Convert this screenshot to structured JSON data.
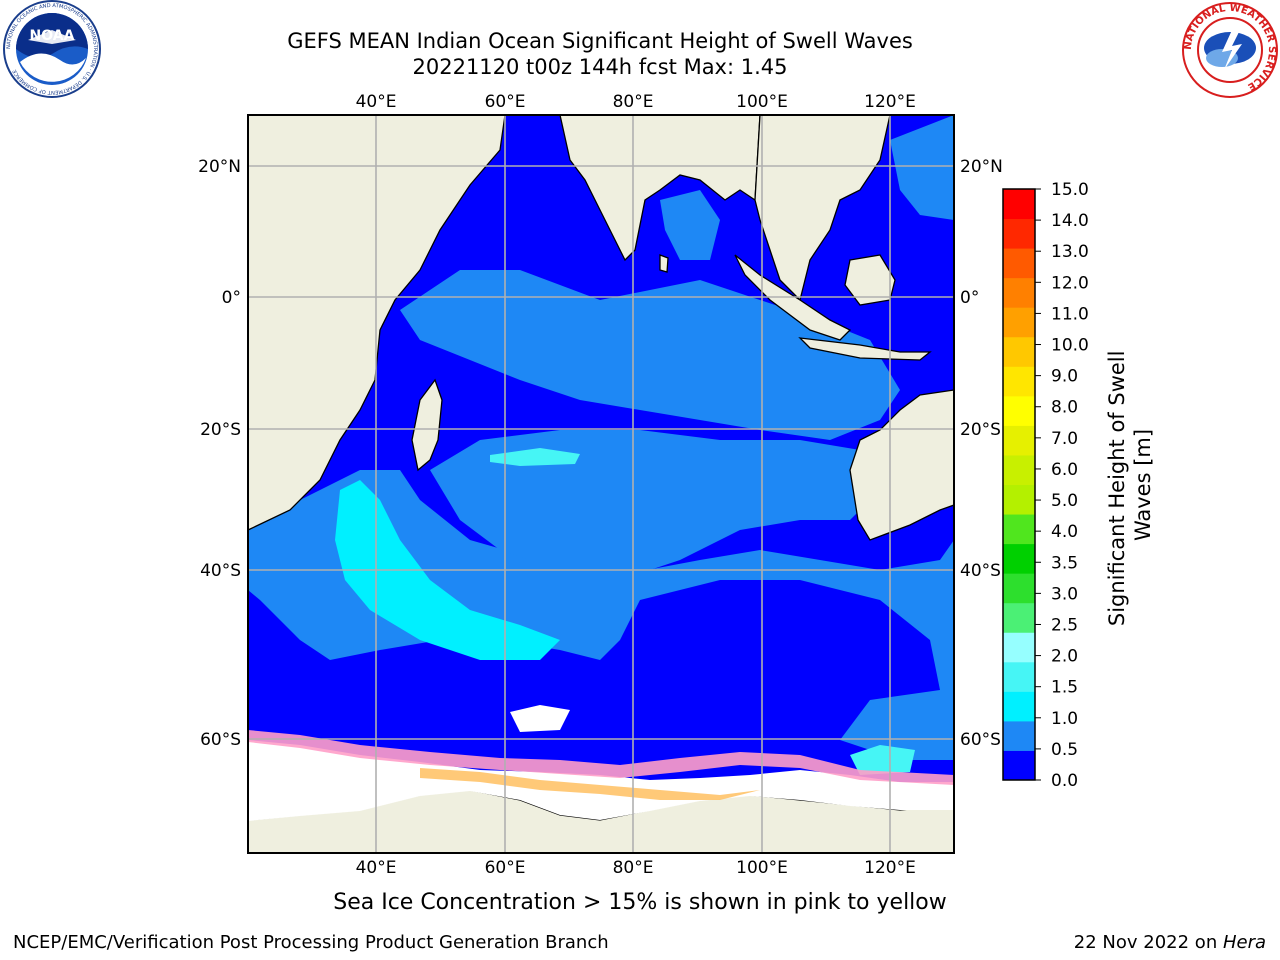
{
  "header": {
    "title_line1": "GEFS MEAN Indian Ocean Significant Height of Swell Waves",
    "title_line2": "20221120 t00z 144h fcst   Max: 1.45"
  },
  "map": {
    "region": "Indian Ocean",
    "lon_range": [
      20,
      130
    ],
    "lat_range": [
      -72,
      27
    ],
    "lon_ticks": [
      "40°E",
      "60°E",
      "80°E",
      "100°E",
      "120°E"
    ],
    "lat_ticks_left": [
      "20°N",
      "0°",
      "20°S",
      "40°S",
      "60°S"
    ],
    "lat_ticks_right": [
      "20°N",
      "0°",
      "20°S",
      "40°S",
      "60°S"
    ],
    "colors": {
      "land": "#efefdf",
      "ice_white": "#ffffff",
      "grid": "#b0b0b0"
    }
  },
  "colorbar": {
    "label": "Significant Height of Swell Waves [m]",
    "label_line1": "Significant Height of Swell",
    "label_line2": "Waves [m]",
    "ticks": [
      "0.0",
      "0.5",
      "1.0",
      "1.5",
      "2.0",
      "2.5",
      "3.0",
      "3.5",
      "4.0",
      "5.0",
      "6.0",
      "7.0",
      "8.0",
      "9.0",
      "10.0",
      "11.0",
      "12.0",
      "13.0",
      "14.0",
      "15.0"
    ],
    "colors": [
      "#0000ff",
      "#1e88f5",
      "#00f0ff",
      "#46f5f5",
      "#96ffff",
      "#4bf075",
      "#2ddf2d",
      "#00d000",
      "#50e61e",
      "#b4f000",
      "#c8f000",
      "#e6f000",
      "#ffff00",
      "#ffe600",
      "#ffc800",
      "#ffa000",
      "#ff8000",
      "#ff5a00",
      "#ff2800",
      "#ff0000"
    ]
  },
  "logos": {
    "noaa_text": "NOAA",
    "noaa_ring": "NATIONAL OCEANIC AND ATMOSPHERIC ADMINISTRATION · U.S. DEPARTMENT OF COMMERCE",
    "nws_ring": "NATIONAL WEATHER SERVICE"
  },
  "footer": {
    "ice_note": "Sea Ice Concentration > 15% is shown in pink to yellow",
    "left": "NCEP/EMC/Verification Post Processing Product Generation Branch",
    "right_date": "22 Nov 2022 on ",
    "right_host": "Hera"
  }
}
